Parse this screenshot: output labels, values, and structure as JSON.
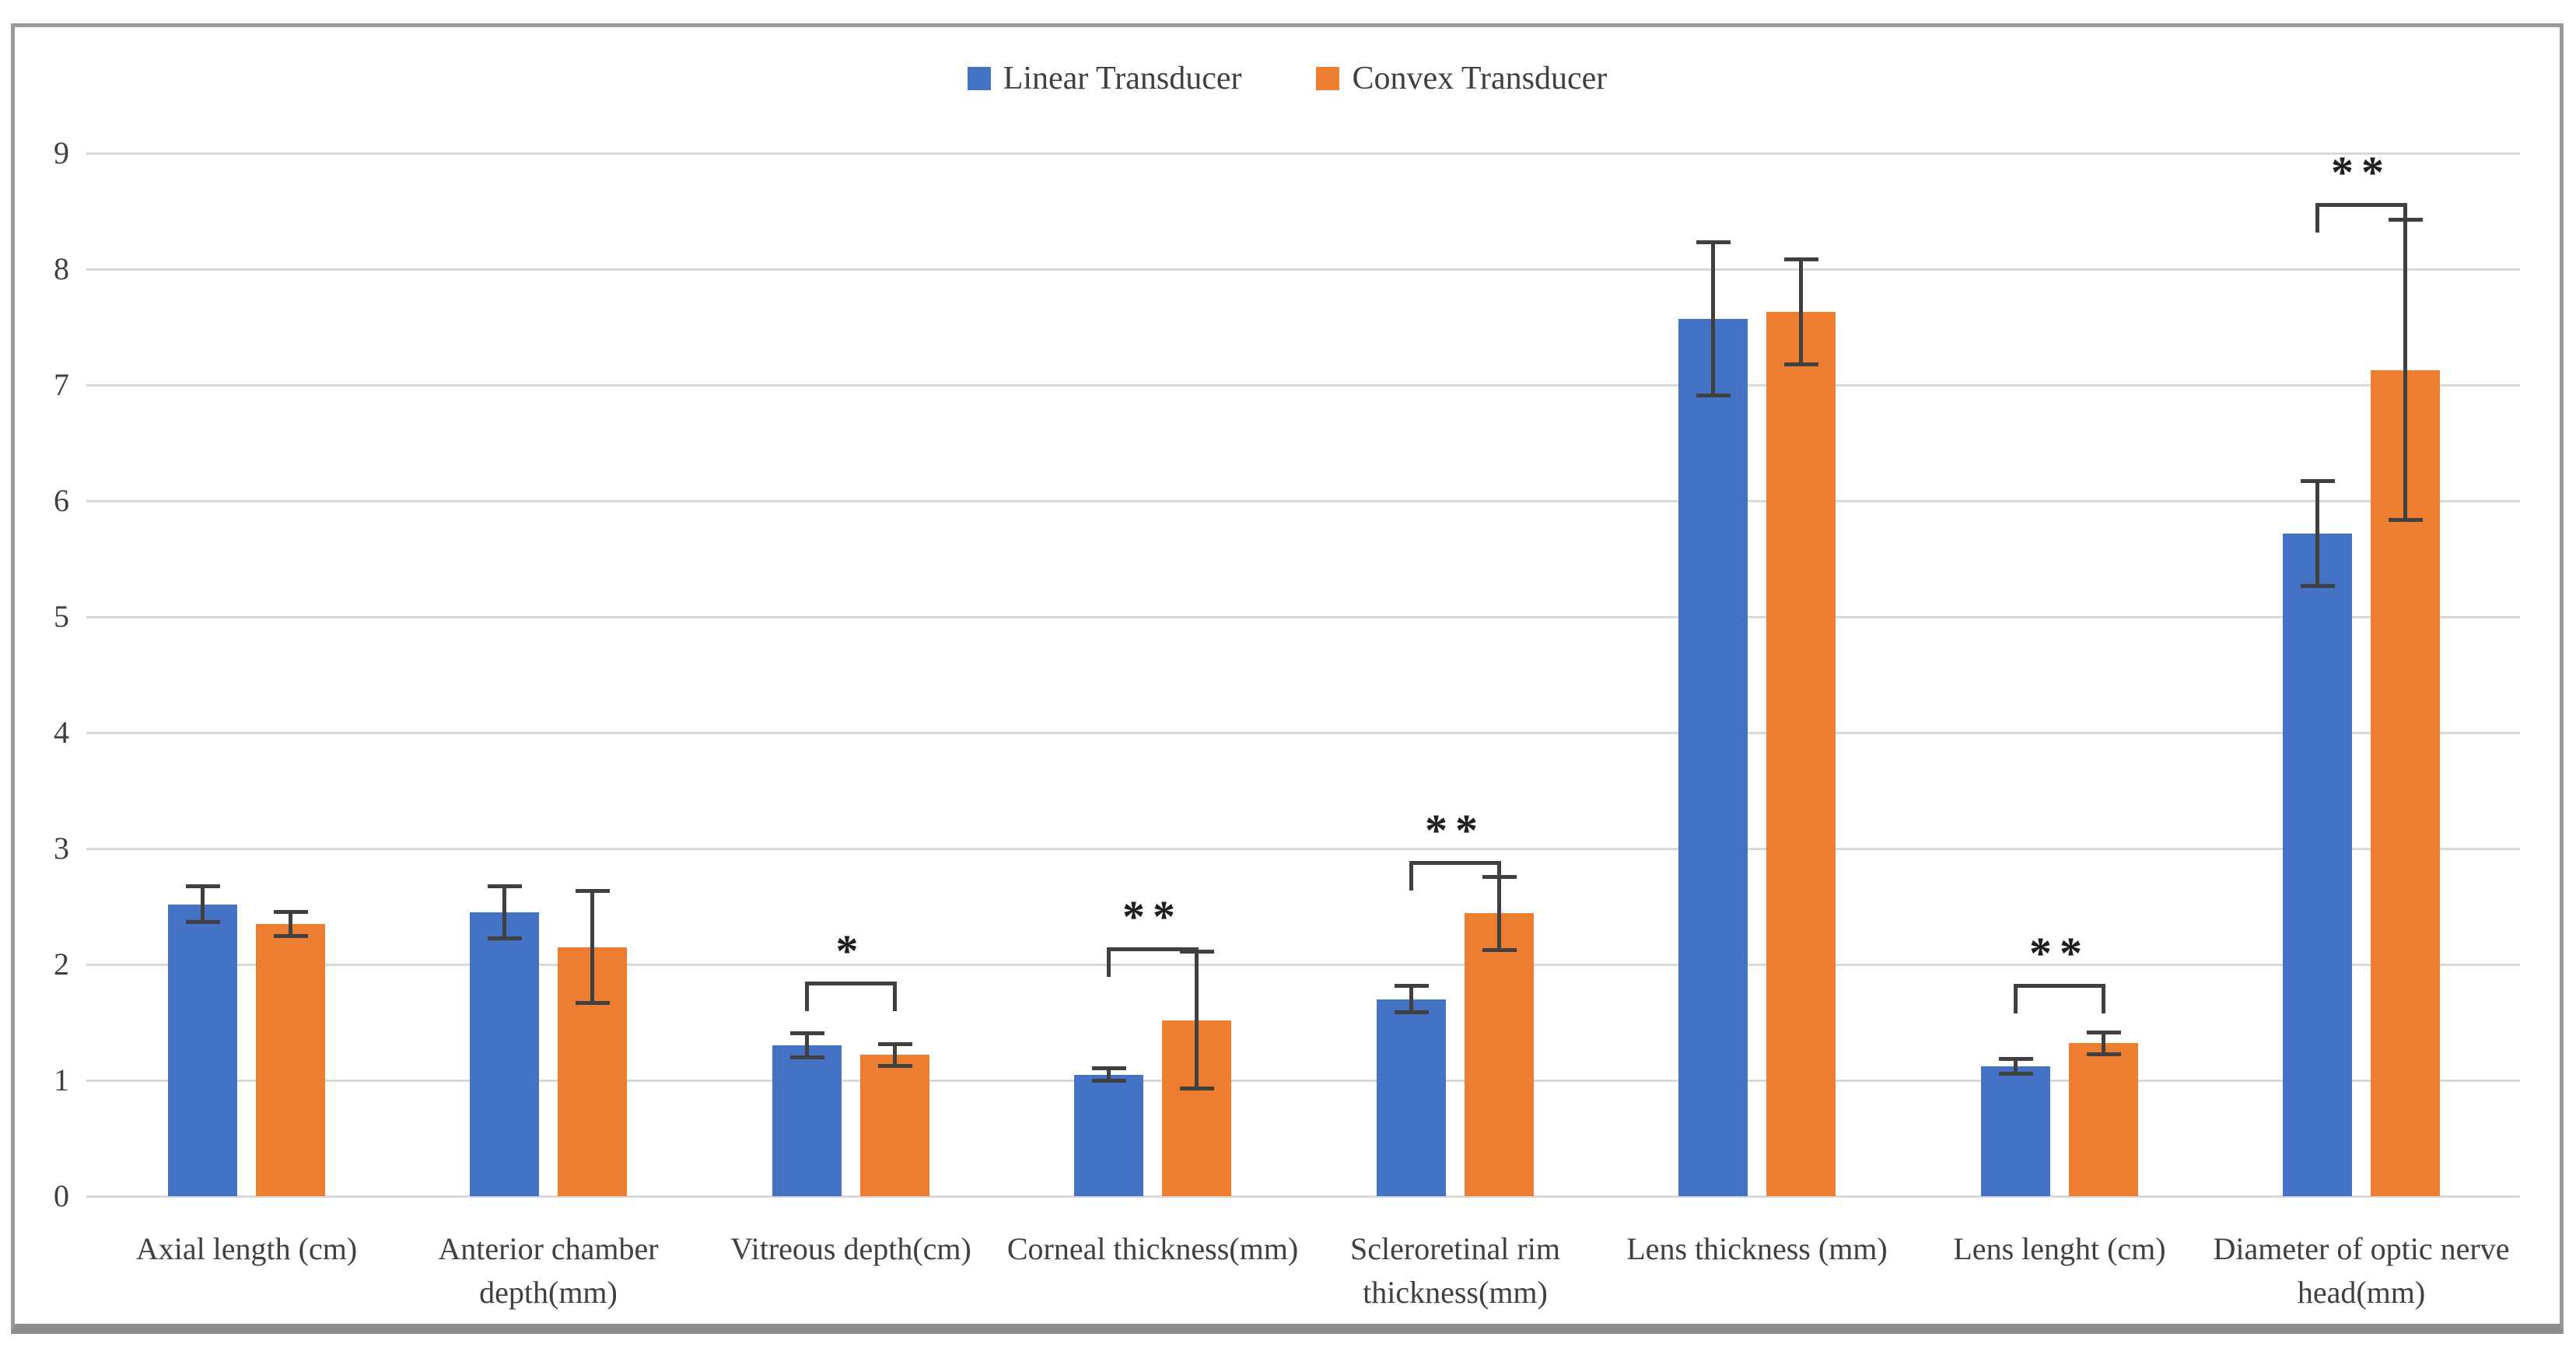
{
  "legend": {
    "items": [
      {
        "label": "Linear Transducer",
        "color": "#4472C4"
      },
      {
        "label": "Convex Transducer",
        "color": "#ED7D31"
      }
    ]
  },
  "chart_data": {
    "type": "bar",
    "title": "",
    "categories": [
      "Axial length (cm)",
      "Anterior chamber depth(mm)",
      "Vitreous depth(cm)",
      "Corneal thickness(mm)",
      "Scleroretinal rim thickness(mm)",
      "Lens thickness (mm)",
      "Lens lenght (cm)",
      "Diameter of optic nerve head(mm)"
    ],
    "series": [
      {
        "name": "Linear Transducer",
        "color": "#4472C4",
        "values": [
          2.52,
          2.45,
          1.3,
          1.05,
          1.7,
          7.57,
          1.12,
          5.72
        ],
        "errors": [
          0.17,
          0.24,
          0.12,
          0.07,
          0.13,
          0.68,
          0.08,
          0.47
        ]
      },
      {
        "name": "Convex Transducer",
        "color": "#ED7D31",
        "values": [
          2.35,
          2.15,
          1.22,
          1.52,
          2.44,
          7.63,
          1.32,
          7.13
        ],
        "errors": [
          0.12,
          0.5,
          0.11,
          0.61,
          0.33,
          0.47,
          0.11,
          1.31
        ]
      }
    ],
    "significance": [
      {
        "category_index": 2,
        "label": "*",
        "bracket_y": 1.85
      },
      {
        "category_index": 3,
        "label": "**",
        "bracket_y": 2.15
      },
      {
        "category_index": 4,
        "label": "**",
        "bracket_y": 2.89
      },
      {
        "category_index": 6,
        "label": "**",
        "bracket_y": 1.83
      },
      {
        "category_index": 7,
        "label": "**",
        "bracket_y": 8.57
      }
    ],
    "ylim": [
      0,
      9
    ],
    "yticks": [
      0,
      1,
      2,
      3,
      4,
      5,
      6,
      7,
      8,
      9
    ],
    "grid": true,
    "legend_position": "top",
    "error_bar_color": "#404040",
    "gridline_color": "#D9D9D9"
  }
}
